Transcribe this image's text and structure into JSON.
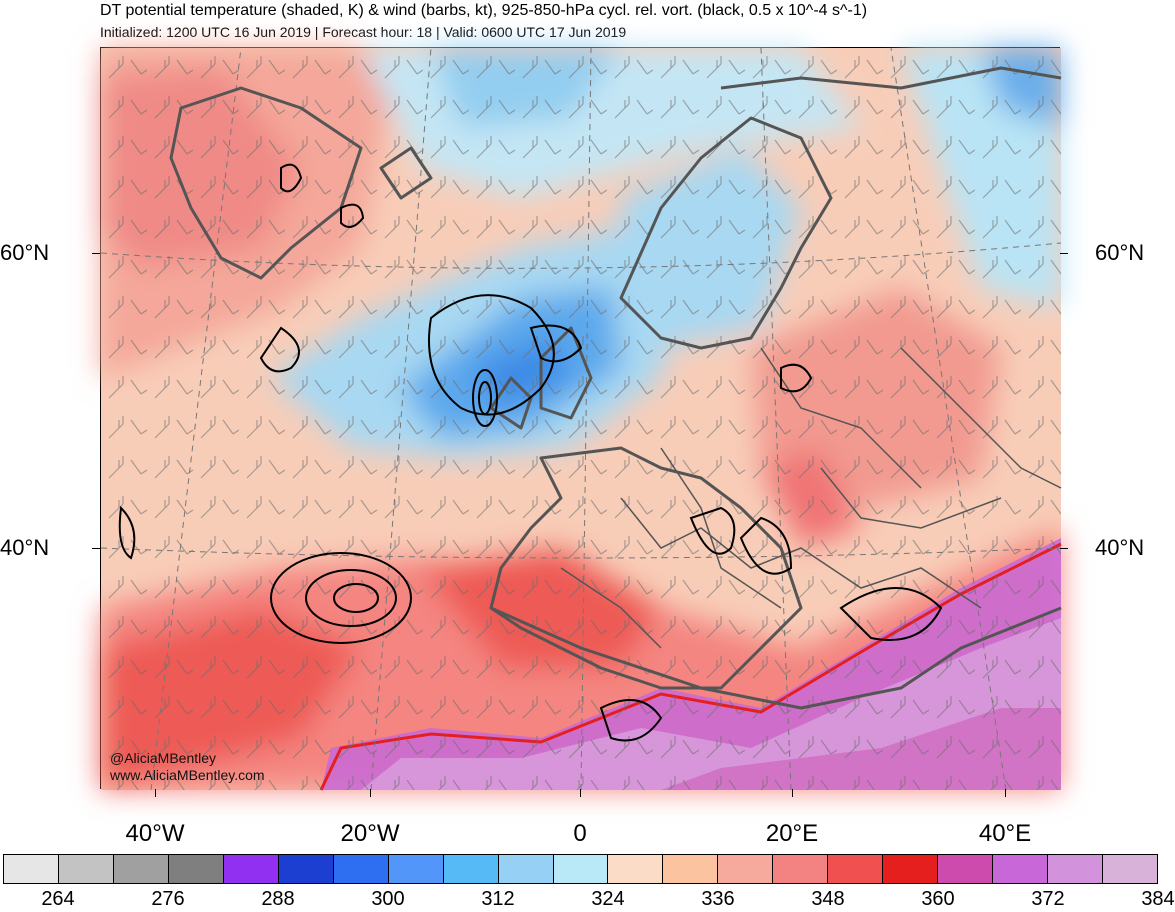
{
  "title": "DT potential temperature (shaded, K) & wind (barbs, kt), 925-850-hPa cycl. rel. vort. (black, 0.5 x 10^-4 s^-1)",
  "subtitle": "Initialized: 1200 UTC 16 Jun 2019 | Forecast hour: 18 | Valid: 0600 UTC 17 Jun 2019",
  "lat_labels": {
    "n60_left": "60°N",
    "n60_right": "60°N",
    "n40_left": "40°N",
    "n40_right": "40°N"
  },
  "lon_labels": {
    "w40": "40°W",
    "w20": "20°W",
    "zero": "0",
    "e20": "20°E",
    "e40": "40°E"
  },
  "credit": {
    "handle": "@AliciaMBentley",
    "site": "www.AliciaMBentley.com"
  },
  "colorbar": {
    "colors": [
      "#e6e6e6",
      "#c3c3c3",
      "#a0a0a0",
      "#7f7f7f",
      "#9130f0",
      "#1c3fd1",
      "#2e6ef0",
      "#5296fa",
      "#55baf5",
      "#97d0f5",
      "#b9e9f7",
      "#fbdcc6",
      "#fbc3a0",
      "#f6a99d",
      "#f38383",
      "#f05050",
      "#e51e1e",
      "#cc4bad",
      "#c868d8",
      "#d293dc",
      "#d8b2d8"
    ],
    "labels": [
      "264",
      "276",
      "288",
      "300",
      "312",
      "324",
      "336",
      "348",
      "360",
      "372",
      "384"
    ]
  }
}
